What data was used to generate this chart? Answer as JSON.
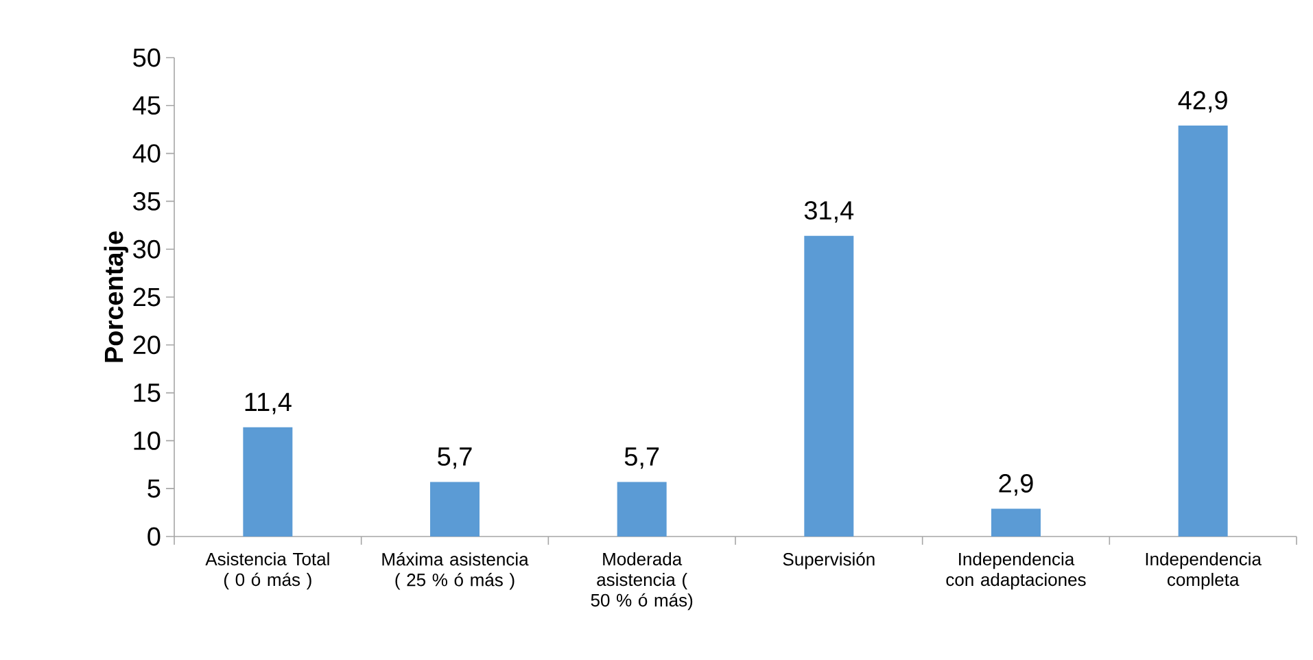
{
  "chart_data": {
    "type": "bar",
    "ylabel": "Porcentaje",
    "categories": [
      "Asistencia Total ( 0 ó más )",
      "Máxima asistencia ( 25 % ó más )",
      "Moderada asistencia ( 50 % ó más)",
      "Supervisión",
      "Independencia con adaptaciones",
      "Independencia completa"
    ],
    "values": [
      11.4,
      5.7,
      5.7,
      31.4,
      2.9,
      42.9
    ],
    "value_labels": [
      "11,4",
      "5,7",
      "5,7",
      "31,4",
      "2,9",
      "42,9"
    ],
    "color": "#5b9bd5",
    "ylim": [
      0,
      50
    ],
    "yticks": [
      0,
      5,
      10,
      15,
      20,
      25,
      30,
      35,
      40,
      45,
      50
    ],
    "grid": false
  }
}
